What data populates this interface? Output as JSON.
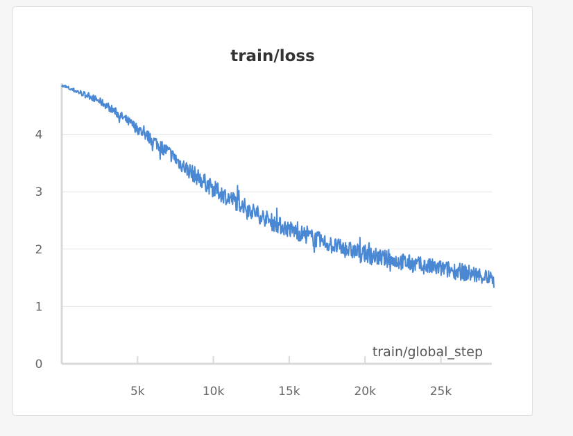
{
  "chart_data": {
    "type": "line",
    "title": "train/loss",
    "xlabel": "train/global_step",
    "ylabel": "",
    "xlim": [
      0,
      28500
    ],
    "ylim": [
      0,
      5
    ],
    "grid": "horizontal",
    "legend": "none",
    "x_ticks": [
      {
        "value": 5000,
        "label": "5k"
      },
      {
        "value": 10000,
        "label": "10k"
      },
      {
        "value": 15000,
        "label": "15k"
      },
      {
        "value": 20000,
        "label": "20k"
      },
      {
        "value": 25000,
        "label": "25k"
      }
    ],
    "y_ticks": [
      {
        "value": 0,
        "label": "0"
      },
      {
        "value": 1,
        "label": "1"
      },
      {
        "value": 2,
        "label": "2"
      },
      {
        "value": 3,
        "label": "3"
      },
      {
        "value": 4,
        "label": "4"
      }
    ],
    "series": [
      {
        "color": "#4a88d4",
        "x": [
          0,
          1000,
          2000,
          3000,
          4000,
          5000,
          6000,
          7000,
          8000,
          9000,
          10000,
          11000,
          12000,
          13000,
          14000,
          15000,
          16000,
          17000,
          18000,
          19000,
          20000,
          21000,
          22000,
          23000,
          24000,
          25000,
          26000,
          27000,
          28000,
          28500
        ],
        "y": [
          4.85,
          4.75,
          4.65,
          4.5,
          4.3,
          4.1,
          3.9,
          3.7,
          3.45,
          3.25,
          3.05,
          2.9,
          2.75,
          2.6,
          2.45,
          2.35,
          2.25,
          2.15,
          2.05,
          1.98,
          1.92,
          1.85,
          1.8,
          1.75,
          1.7,
          1.66,
          1.62,
          1.57,
          1.52,
          1.45
        ]
      }
    ]
  }
}
